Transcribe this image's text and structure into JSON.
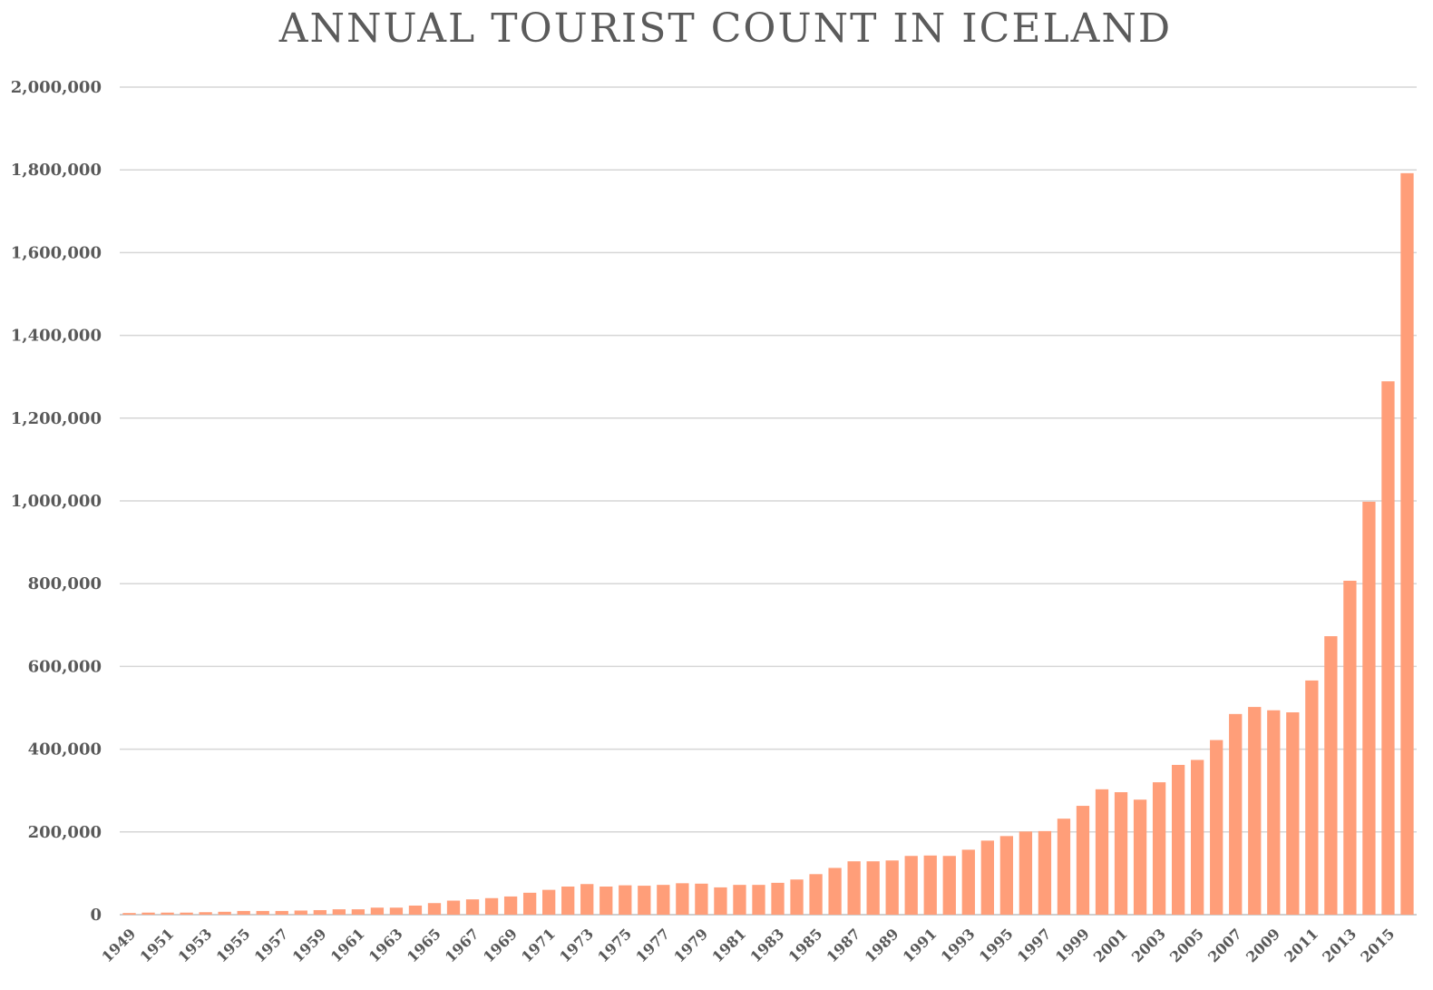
{
  "chart_data": {
    "type": "bar",
    "title": "ANNUAL TOURIST COUNT IN ICELAND",
    "xlabel": "",
    "ylabel": "",
    "ylim": [
      0,
      2000000
    ],
    "yticks": [
      0,
      200000,
      400000,
      600000,
      800000,
      1000000,
      1200000,
      1400000,
      1600000,
      1800000,
      2000000
    ],
    "ytick_labels": [
      "0",
      "200,000",
      "400,000",
      "600,000",
      "800,000",
      "1,000,000",
      "1,200,000",
      "1,400,000",
      "1,600,000",
      "1,800,000",
      "2,000,000"
    ],
    "grid": true,
    "bar_color": "#FF9E79",
    "categories": [
      "1949",
      "1950",
      "1951",
      "1952",
      "1953",
      "1954",
      "1955",
      "1956",
      "1957",
      "1958",
      "1959",
      "1960",
      "1961",
      "1962",
      "1963",
      "1964",
      "1965",
      "1966",
      "1967",
      "1968",
      "1969",
      "1970",
      "1971",
      "1972",
      "1973",
      "1974",
      "1975",
      "1976",
      "1977",
      "1978",
      "1979",
      "1980",
      "1981",
      "1982",
      "1983",
      "1984",
      "1985",
      "1986",
      "1987",
      "1988",
      "1989",
      "1990",
      "1991",
      "1992",
      "1993",
      "1994",
      "1995",
      "1996",
      "1997",
      "1998",
      "1999",
      "2000",
      "2001",
      "2002",
      "2003",
      "2004",
      "2005",
      "2006",
      "2007",
      "2008",
      "2009",
      "2010",
      "2011",
      "2012",
      "2013",
      "2014",
      "2015",
      "2016"
    ],
    "tick_label_categories": [
      "1949",
      "1951",
      "1953",
      "1955",
      "1957",
      "1959",
      "1961",
      "1963",
      "1965",
      "1967",
      "1969",
      "1971",
      "1973",
      "1975",
      "1977",
      "1979",
      "1981",
      "1983",
      "1985",
      "1987",
      "1989",
      "1991",
      "1993",
      "1995",
      "1997",
      "1999",
      "2001",
      "2003",
      "2005",
      "2007",
      "2009",
      "2011",
      "2013",
      "2015"
    ],
    "values": [
      4000,
      5000,
      5000,
      5000,
      6000,
      7000,
      9000,
      9000,
      9000,
      10000,
      11000,
      13000,
      13000,
      17000,
      17000,
      22000,
      28000,
      34000,
      37000,
      40000,
      44000,
      53000,
      60000,
      68000,
      74000,
      68000,
      71000,
      70000,
      72000,
      76000,
      75000,
      66000,
      72000,
      72000,
      77000,
      85000,
      98000,
      113000,
      129000,
      129000,
      131000,
      142000,
      143000,
      142000,
      157000,
      179000,
      190000,
      201000,
      202000,
      232000,
      263000,
      303000,
      296000,
      278000,
      320000,
      362000,
      374000,
      422000,
      485000,
      502000,
      494000,
      489000,
      566000,
      673000,
      807000,
      998000,
      1289000,
      1792000
    ]
  }
}
